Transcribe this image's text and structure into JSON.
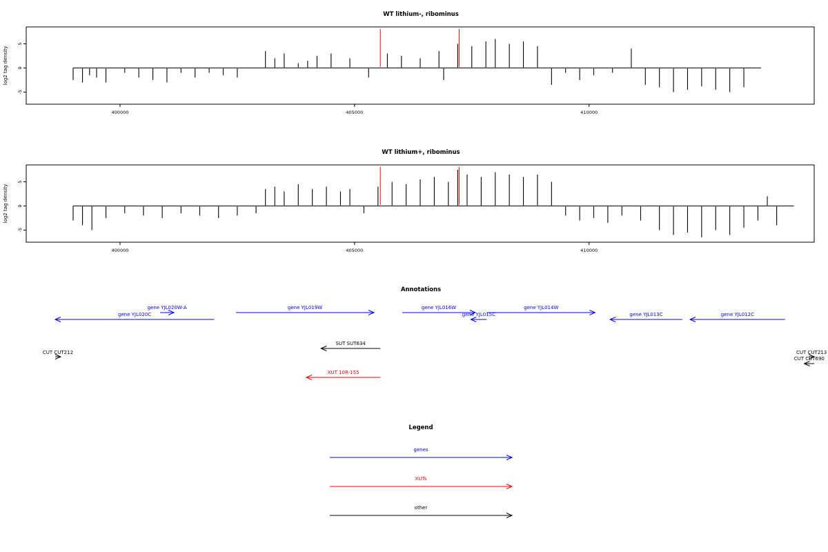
{
  "colors": {
    "gene": "#0000ff",
    "xut": "#ff0000",
    "other": "#000000",
    "marker": "#ff0000",
    "bars": "#000000"
  },
  "chart_data": [
    {
      "type": "bar",
      "title": "WT lithium-, ribominus",
      "ylabel": "log2 tag density",
      "xlim": [
        398000,
        414800
      ],
      "ylim": [
        -7.5,
        8.5
      ],
      "xticks": [
        400000,
        405000,
        410000
      ],
      "yticks": [
        -5,
        0,
        5
      ],
      "grid": false,
      "markers": [
        405550,
        407230
      ],
      "series": [
        {
          "x": [
            399000,
            399200,
            399350,
            399500,
            399700,
            400100,
            400400,
            400700,
            401000,
            401300,
            401600,
            401900,
            402200,
            402500,
            403100,
            403300,
            403500,
            403800,
            404000,
            404200,
            404500,
            404900,
            405300,
            405700,
            406000,
            406400,
            406800,
            406900,
            407200,
            407500,
            407800,
            408000,
            408300,
            408600,
            408900,
            409200,
            409500,
            409800,
            410100,
            410500,
            410900,
            411200,
            411500,
            411800,
            412100,
            412400,
            412700,
            413000,
            413300
          ],
          "values": [
            -2.5,
            -3.0,
            -1.5,
            -2.0,
            -3.0,
            -1.0,
            -2.0,
            -2.5,
            -3.0,
            -1.0,
            -2.0,
            -1.0,
            -1.5,
            -2.0,
            3.5,
            2.0,
            3.0,
            1.0,
            1.5,
            2.5,
            3.0,
            2.0,
            -2.0,
            3.0,
            2.5,
            2.0,
            3.5,
            -2.5,
            5.0,
            4.5,
            5.5,
            6.0,
            5.0,
            5.5,
            4.5,
            -3.5,
            -1.0,
            -2.5,
            -1.5,
            -1.0,
            4.0,
            -3.5,
            -4.0,
            -5.0,
            -4.5,
            -3.8,
            -4.5,
            -5.0,
            -4.0
          ]
        }
      ]
    },
    {
      "type": "bar",
      "title": "WT lithium+, ribominus",
      "ylabel": "log2 tag density",
      "xlim": [
        398000,
        414800
      ],
      "ylim": [
        -7.5,
        8.5
      ],
      "xticks": [
        400000,
        405000,
        410000
      ],
      "yticks": [
        -5,
        0,
        5
      ],
      "grid": false,
      "markers": [
        405550,
        407230
      ],
      "series": [
        {
          "x": [
            399000,
            399200,
            399400,
            399700,
            400100,
            400500,
            400900,
            401300,
            401700,
            402100,
            402500,
            402900,
            403100,
            403300,
            403500,
            403800,
            404100,
            404400,
            404700,
            404900,
            405200,
            405500,
            405800,
            406100,
            406400,
            406700,
            407000,
            407200,
            407400,
            407700,
            408000,
            408300,
            408600,
            408900,
            409200,
            409500,
            409800,
            410100,
            410400,
            410700,
            411100,
            411500,
            411800,
            412100,
            412400,
            412700,
            413000,
            413300,
            413600,
            413800,
            414000
          ],
          "values": [
            -3.0,
            -4.0,
            -5.0,
            -2.5,
            -1.5,
            -2.0,
            -2.5,
            -1.5,
            -2.0,
            -2.5,
            -2.0,
            -1.5,
            3.5,
            4.0,
            3.0,
            4.5,
            3.5,
            4.0,
            3.0,
            3.5,
            -1.5,
            4.0,
            5.0,
            4.5,
            5.5,
            6.0,
            5.0,
            7.5,
            6.5,
            6.0,
            7.0,
            6.5,
            6.0,
            6.5,
            5.0,
            -2.0,
            -3.0,
            -2.5,
            -3.5,
            -2.0,
            -3.0,
            -5.0,
            -6.0,
            -5.5,
            -6.5,
            -5.0,
            -6.0,
            -4.5,
            -3.0,
            2.0,
            -4.0
          ]
        }
      ]
    }
  ],
  "annotations": {
    "title": "Annotations",
    "xlim": [
      398000,
      414800
    ],
    "items": [
      {
        "label": "gene YJL020W-A",
        "kind": "gene",
        "strand": "+",
        "start": 400300,
        "end": 400600,
        "row": 1
      },
      {
        "label": "gene YJL020C",
        "kind": "gene",
        "strand": "-",
        "start": 398000,
        "end": 401480,
        "row": 0
      },
      {
        "label": "gene YJL019W",
        "kind": "gene",
        "strand": "+",
        "start": 401960,
        "end": 404980,
        "row": 1
      },
      {
        "label": "gene YJL016W",
        "kind": "gene",
        "strand": "+",
        "start": 405600,
        "end": 407200,
        "row": 1
      },
      {
        "label": "gene YJL015C",
        "kind": "gene",
        "strand": "-",
        "start": 407100,
        "end": 407450,
        "row": 0
      },
      {
        "label": "gene YJL014W",
        "kind": "gene",
        "strand": "+",
        "start": 407460,
        "end": 409820,
        "row": 1
      },
      {
        "label": "gene YJL013C",
        "kind": "gene",
        "strand": "-",
        "start": 410150,
        "end": 411730,
        "row": 0
      },
      {
        "label": "gene YJL012C",
        "kind": "gene",
        "strand": "-",
        "start": 411900,
        "end": 413980,
        "row": 0
      },
      {
        "label": "SUT SUT634",
        "kind": "other",
        "strand": "-",
        "start": 403820,
        "end": 405120,
        "row": 2
      },
      {
        "label": "CUT CUT212",
        "kind": "other",
        "strand": "+",
        "start": 398000,
        "end": 398120,
        "row": 3
      },
      {
        "label": "CUT CUT213",
        "kind": "other",
        "strand": "+",
        "start": 414500,
        "end": 414620,
        "row": 3
      },
      {
        "label": "CUT CUT690",
        "kind": "other",
        "strand": "-",
        "start": 414400,
        "end": 414620,
        "row": 4
      },
      {
        "label": "XUT 10R-155",
        "kind": "xut",
        "strand": "-",
        "start": 403500,
        "end": 405120,
        "row": 5
      }
    ]
  },
  "legend": {
    "title": "Legend",
    "items": [
      {
        "label": "genes",
        "kind": "gene"
      },
      {
        "label": "XUTs",
        "kind": "xut"
      },
      {
        "label": "other",
        "kind": "other"
      }
    ]
  }
}
